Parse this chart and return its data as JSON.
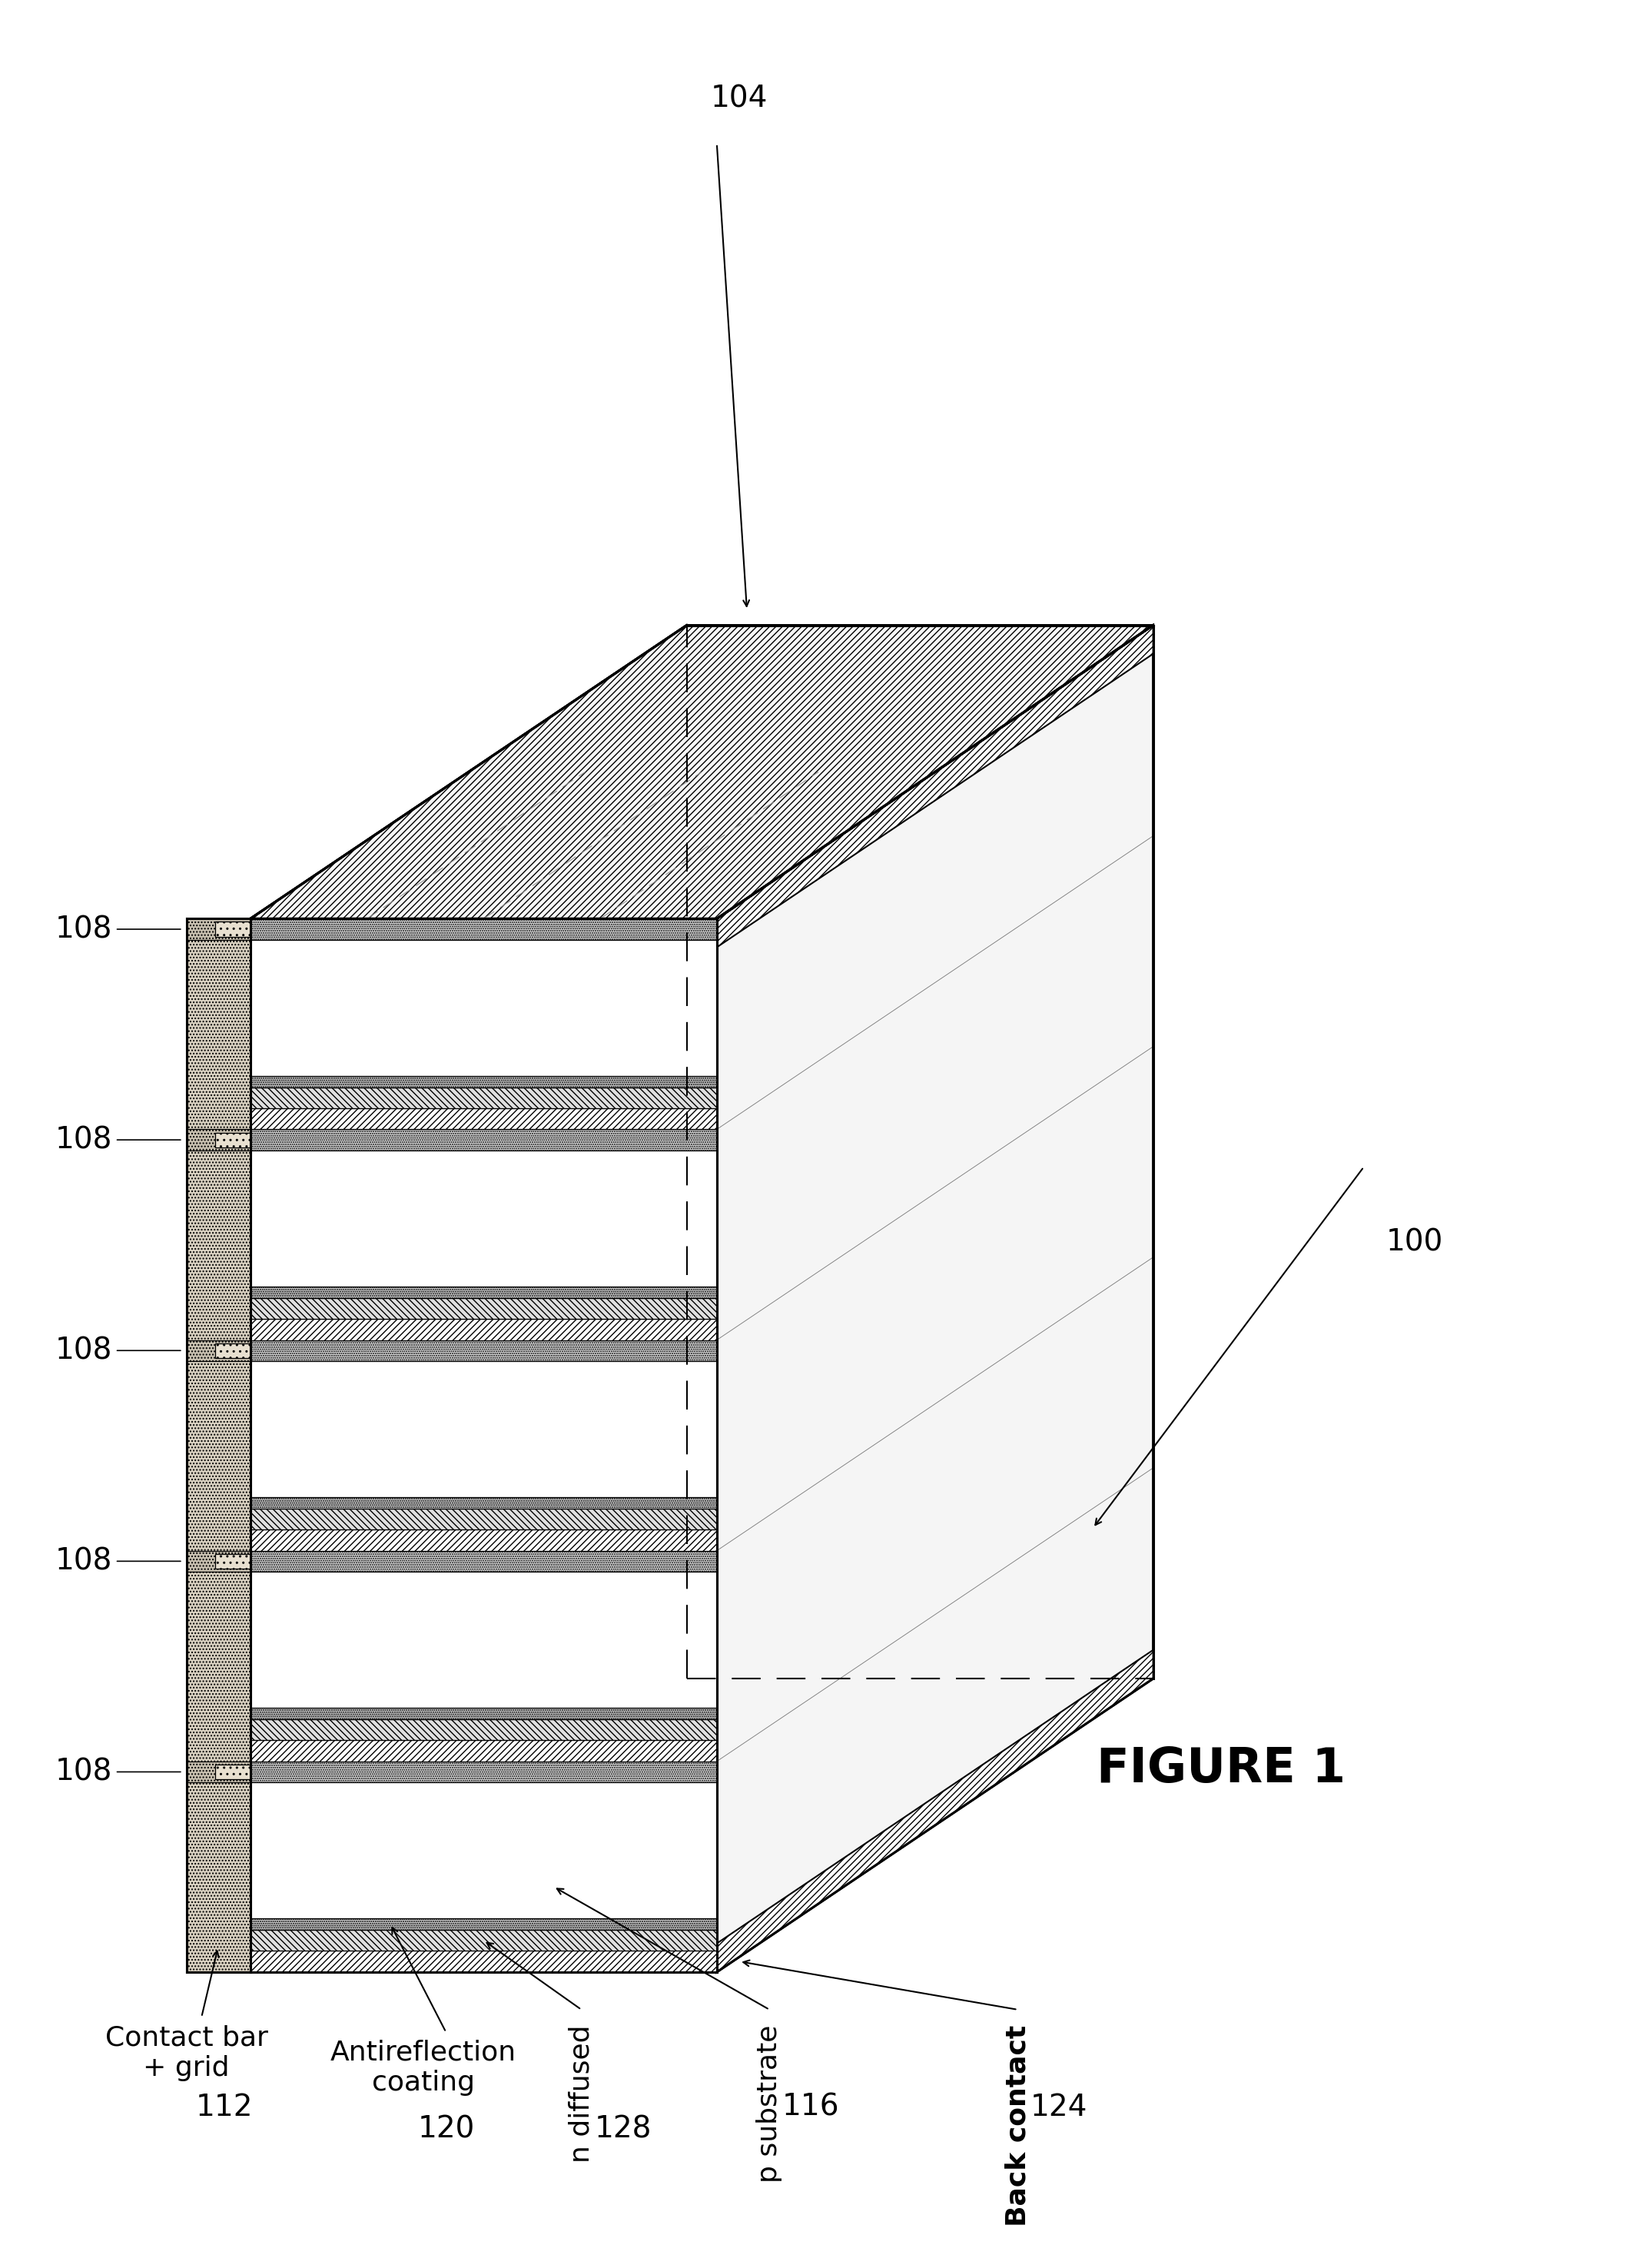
{
  "figure_label": "FIGURE 1",
  "ref_100": "100",
  "ref_104": "104",
  "ref_108": "108",
  "ref_112": "112",
  "ref_116": "116",
  "ref_120": "120",
  "ref_124": "124",
  "ref_128": "128",
  "label_contact_bar_grid": "Contact bar\n+ grid",
  "label_antireflection": "Antireflection\ncoating",
  "label_n_diffused": "n diffused",
  "label_p_substrate": "p substrate",
  "label_back_contact": "Back contact",
  "bg_color": "#ffffff",
  "n_cells": 5,
  "t_contact": 0.1,
  "t_arc": 0.055,
  "t_n": 0.1,
  "t_back": 0.1,
  "lw_thick": 2.2,
  "lw_med": 1.5,
  "lw_thin": 0.9,
  "fs_ref": 14,
  "fs_label": 13
}
